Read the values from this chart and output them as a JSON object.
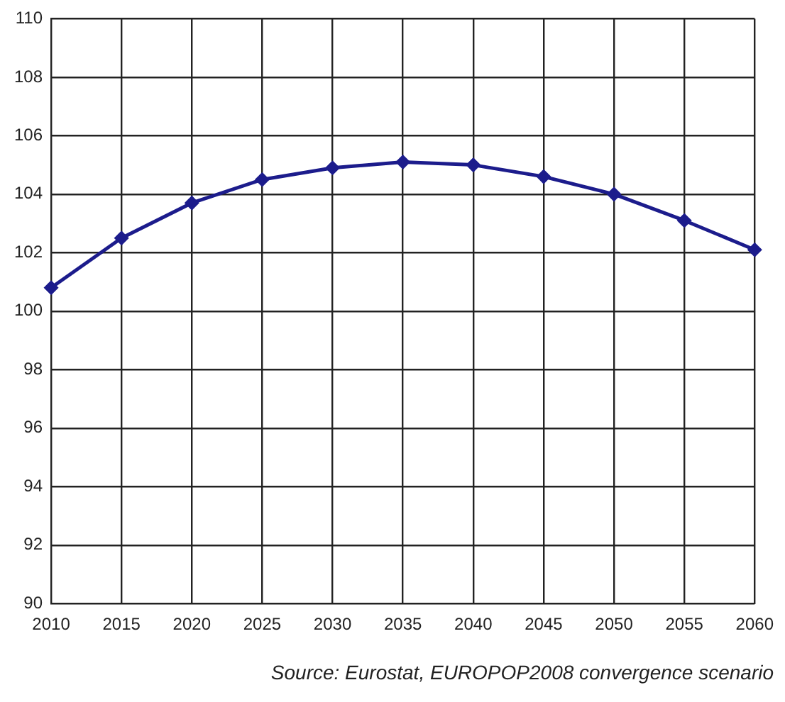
{
  "chart_data": {
    "type": "line",
    "categories": [
      "2010",
      "2015",
      "2020",
      "2025",
      "2030",
      "2035",
      "2040",
      "2045",
      "2050",
      "2055",
      "2060"
    ],
    "series": [
      {
        "color": "#1c1c8c",
        "values": [
          100.8,
          102.5,
          103.7,
          104.5,
          104.9,
          105.1,
          105.0,
          104.6,
          104.0,
          103.1,
          102.1
        ]
      }
    ],
    "ylim": [
      90,
      110
    ],
    "yticks": [
      90,
      92,
      94,
      96,
      98,
      100,
      102,
      104,
      106,
      108,
      110
    ],
    "grid": true,
    "legend": false,
    "marker": "diamond",
    "line_style": "solid",
    "annotations": [
      "Source: Eurostat, EUROPOP2008 convergence scenario"
    ]
  }
}
